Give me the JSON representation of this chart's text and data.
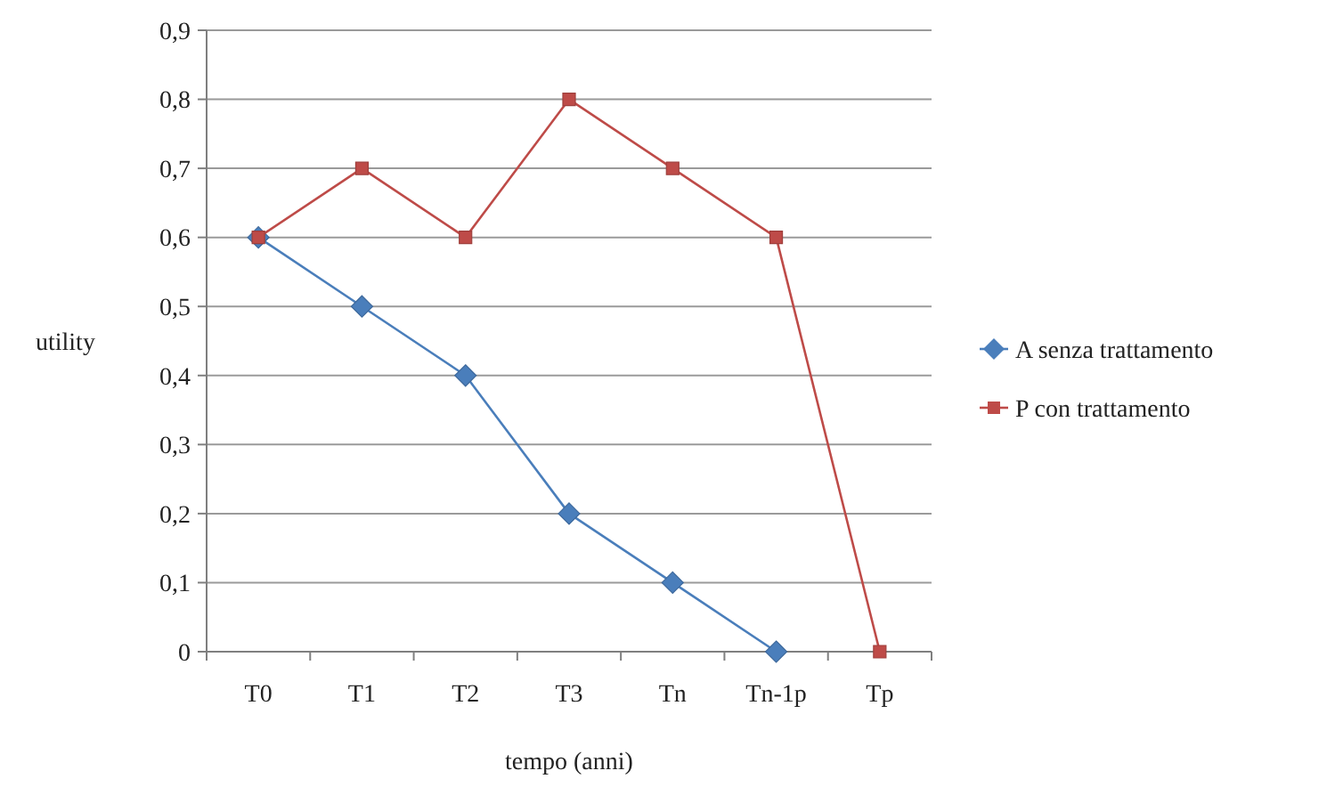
{
  "chart_data": {
    "type": "line",
    "xlabel": "tempo (anni)",
    "ylabel": "utility",
    "categories": [
      "T0",
      "T1",
      "T2",
      "T3",
      "Tn",
      "Tn-1p",
      "Tp"
    ],
    "series": [
      {
        "name": "A senza trattamento",
        "color": "#4a7ebb",
        "marker": "diamond",
        "values": [
          0.6,
          0.5,
          0.4,
          0.2,
          0.1,
          0,
          null
        ]
      },
      {
        "name": "P con trattamento",
        "color": "#be4b48",
        "marker": "square",
        "values": [
          0.6,
          0.7,
          0.6,
          0.8,
          0.7,
          0.6,
          0
        ]
      }
    ],
    "ylim": [
      0,
      0.9
    ],
    "yticks": [
      {
        "value": 0,
        "label": "0"
      },
      {
        "value": 0.1,
        "label": "0,1"
      },
      {
        "value": 0.2,
        "label": "0,2"
      },
      {
        "value": 0.3,
        "label": "0,3"
      },
      {
        "value": 0.4,
        "label": "0,4"
      },
      {
        "value": 0.5,
        "label": "0,5"
      },
      {
        "value": 0.6,
        "label": "0,6"
      },
      {
        "value": 0.7,
        "label": "0,7"
      },
      {
        "value": 0.8,
        "label": "0,8"
      },
      {
        "value": 0.9,
        "label": "0,9"
      }
    ],
    "grid": "y",
    "legend": "right"
  }
}
